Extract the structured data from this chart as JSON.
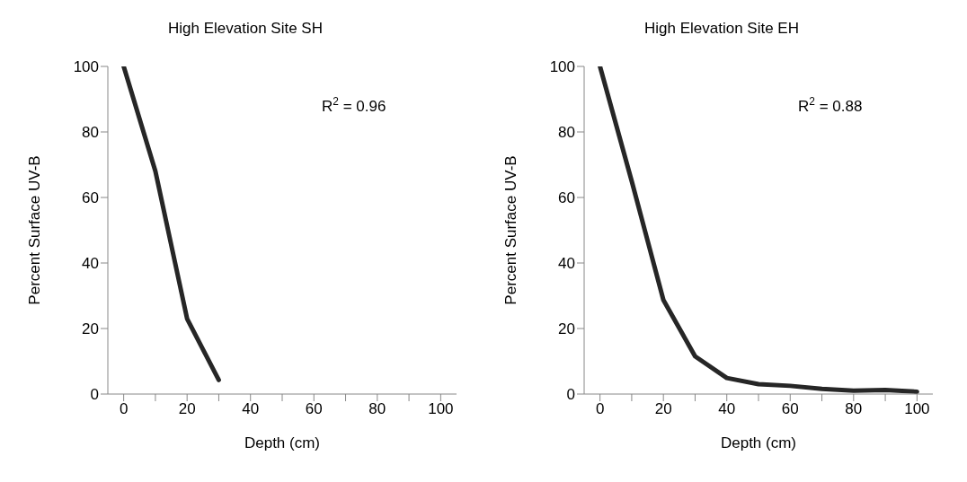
{
  "chart_data": [
    {
      "type": "line",
      "title": "High Elevation Site SH",
      "xlabel": "Depth (cm)",
      "ylabel": "Percent Surface UV-B",
      "annotations": [
        "R$^{2}$ = 0.96"
      ],
      "series": [
        {
          "color": "#262626",
          "x": [
            0,
            10,
            20,
            30
          ],
          "values": [
            100,
            68,
            23,
            4.3
          ]
        }
      ],
      "xlim": [
        -5,
        105
      ],
      "xticks": [
        0,
        {
          "value": 10,
          "label": null
        },
        20,
        {
          "value": 30,
          "label": null
        },
        40,
        {
          "value": 50,
          "label": null
        },
        60,
        {
          "value": 70,
          "label": null
        },
        80,
        {
          "value": 90,
          "label": null
        },
        100
      ],
      "ylim": [
        0,
        100
      ],
      "yticks": [
        0,
        20,
        40,
        60,
        80,
        100
      ],
      "grid": false,
      "marker": "none",
      "line_style": "solid"
    },
    {
      "type": "line",
      "title": "High Elevation Site EH",
      "xlabel": "Depth (cm)",
      "ylabel": "Percent Surface UV-B",
      "annotations": [
        "R$^{2}$ = 0.88"
      ],
      "series": [
        {
          "color": "#262626",
          "x": [
            0,
            10,
            20,
            30,
            40,
            50,
            60,
            70,
            80,
            90,
            100
          ],
          "values": [
            100,
            65,
            28.7,
            11.5,
            4.9,
            3,
            2.5,
            1.6,
            1,
            1.2,
            0.7
          ]
        }
      ],
      "xlim": [
        -5,
        105
      ],
      "xticks": [
        0,
        {
          "value": 10,
          "label": null
        },
        20,
        {
          "value": 30,
          "label": null
        },
        40,
        {
          "value": 50,
          "label": null
        },
        60,
        {
          "value": 70,
          "label": null
        },
        80,
        {
          "value": 90,
          "label": null
        },
        100
      ],
      "ylim": [
        0,
        100
      ],
      "yticks": [
        0,
        20,
        40,
        60,
        80,
        100
      ],
      "grid": false,
      "marker": "none",
      "line_style": "solid"
    }
  ]
}
